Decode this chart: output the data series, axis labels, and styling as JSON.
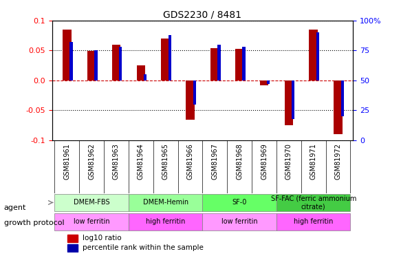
{
  "title": "GDS2230 / 8481",
  "samples": [
    "GSM81961",
    "GSM81962",
    "GSM81963",
    "GSM81964",
    "GSM81965",
    "GSM81966",
    "GSM81967",
    "GSM81968",
    "GSM81969",
    "GSM81970",
    "GSM81971",
    "GSM81972"
  ],
  "log10_ratio": [
    0.085,
    0.049,
    0.06,
    0.025,
    0.07,
    -0.065,
    0.054,
    0.053,
    -0.008,
    -0.075,
    0.085,
    -0.09
  ],
  "percentile_rank": [
    82,
    75,
    78,
    55,
    88,
    30,
    80,
    78,
    47,
    18,
    90,
    20
  ],
  "ylim": [
    -0.1,
    0.1
  ],
  "yticks_left": [
    -0.1,
    -0.05,
    0.0,
    0.05,
    0.1
  ],
  "yticks_right": [
    0,
    25,
    50,
    75,
    100
  ],
  "agent_groups": [
    {
      "label": "DMEM-FBS",
      "start": 0,
      "end": 3,
      "color": "#ccffcc"
    },
    {
      "label": "DMEM-Hemin",
      "start": 3,
      "end": 6,
      "color": "#99ff99"
    },
    {
      "label": "SF-0",
      "start": 6,
      "end": 9,
      "color": "#66ff66"
    },
    {
      "label": "SF-FAC (ferric ammonium\ncitrate)",
      "start": 9,
      "end": 12,
      "color": "#44cc44"
    }
  ],
  "growth_groups": [
    {
      "label": "low ferritin",
      "start": 0,
      "end": 3,
      "color": "#ff99ff"
    },
    {
      "label": "high ferritin",
      "start": 3,
      "end": 6,
      "color": "#ff66ff"
    },
    {
      "label": "low ferritin",
      "start": 6,
      "end": 9,
      "color": "#ff99ff"
    },
    {
      "label": "high ferritin",
      "start": 9,
      "end": 12,
      "color": "#ff66ff"
    }
  ],
  "bar_color": "#aa0000",
  "pct_color": "#0000cc",
  "legend_bar_color": "#cc0000",
  "legend_pct_color": "#0000aa",
  "grid_color": "#000000",
  "zero_line_color": "#cc0000",
  "label_agent": "agent",
  "label_growth": "growth protocol",
  "legend_log10": "log10 ratio",
  "legend_pct": "percentile rank within the sample"
}
